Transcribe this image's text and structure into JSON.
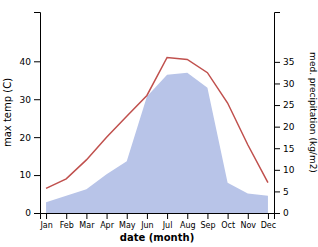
{
  "chart_data": {
    "type": "line",
    "categories": [
      "Jan",
      "Feb",
      "Mar",
      "Apr",
      "May",
      "Jun",
      "Jul",
      "Aug",
      "Sep",
      "Oct",
      "Nov",
      "Dec"
    ],
    "series": [
      {
        "type": "area",
        "axis": "y2",
        "color": "#b8c4e8",
        "values": [
          2.5,
          4.0,
          5.5,
          9.0,
          12.0,
          27.0,
          32.0,
          32.5,
          29.0,
          7.0,
          4.5,
          4.0
        ]
      },
      {
        "type": "line",
        "color": "#c0504d",
        "values": [
          6.5,
          9.0,
          14.0,
          20.0,
          25.5,
          31.0,
          41.0,
          40.5,
          37.0,
          29.0,
          18.0,
          8.0
        ]
      }
    ],
    "xlabel": "date (month)",
    "ylabel": "max temp (C)",
    "y2label": "med. precipitation (kg/m2)",
    "ylim": [
      0,
      53
    ],
    "yticks": [
      0,
      10,
      20,
      30,
      40
    ],
    "y2lim": [
      0,
      46.55
    ],
    "y2ticks": [
      0,
      5,
      10,
      15,
      20,
      25,
      30,
      35
    ],
    "grid": false
  }
}
